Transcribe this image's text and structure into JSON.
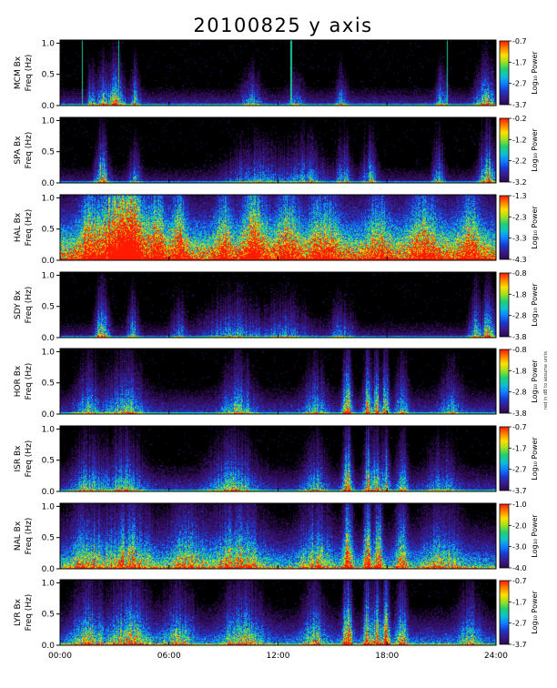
{
  "title": "20100825 y axis",
  "side_note": "red in dB to assume units",
  "colors": {
    "background": "#000000",
    "colormap": [
      "#000000",
      "#2a0a4a",
      "#3a1a8a",
      "#1a3ad0",
      "#1080ff",
      "#10c0d0",
      "#20d070",
      "#a0e020",
      "#ffe000",
      "#ff8000",
      "#ff1a00"
    ]
  },
  "chart_data": {
    "type": "heatmap",
    "title": "20100825 y axis",
    "x_ticks": [
      "00:00",
      "06:00",
      "12:00",
      "18:00",
      "24:00"
    ],
    "xlim_hours": [
      0,
      24
    ],
    "ylim_hz": [
      0,
      1.05
    ],
    "y_ticks": [
      "0.0",
      "0.5",
      "1.0"
    ],
    "panels": [
      {
        "station": "MCM",
        "label": "MCM Bx",
        "ylabel": "Freq (Hz)",
        "cbar_label": "Log₁₀ Power",
        "cbar_ticks": [
          "-0.7",
          "-1.7",
          "-2.7",
          "-3.7"
        ],
        "baseline": 0.15,
        "noise": 0.45,
        "decay": 5.5,
        "level": 0.45,
        "bursts": [
          [
            1.7,
            0.2,
            0.5
          ],
          [
            2.4,
            0.35,
            0.8
          ],
          [
            2.95,
            0.2,
            0.6
          ],
          [
            3.25,
            0.3,
            0.6
          ],
          [
            4.1,
            0.25,
            0.6
          ],
          [
            10.5,
            0.5,
            0.4
          ],
          [
            13.0,
            0.4,
            0.3
          ],
          [
            15.5,
            0.3,
            0.4
          ],
          [
            21.0,
            0.3,
            0.5
          ],
          [
            23.4,
            0.5,
            0.7
          ]
        ],
        "spikes": [
          1.2,
          3.2,
          12.7,
          21.3
        ]
      },
      {
        "station": "SPA",
        "label": "SPA Bx",
        "ylabel": "Freq (Hz)",
        "cbar_label": "Log₁₀ Power",
        "cbar_ticks": [
          "-0.2",
          "-1.2",
          "-2.2",
          "-3.2"
        ],
        "baseline": 0.12,
        "noise": 0.4,
        "decay": 5.0,
        "level": 0.4,
        "bursts": [
          [
            2.3,
            0.35,
            1.0
          ],
          [
            4.1,
            0.3,
            0.5
          ],
          [
            10.8,
            1.5,
            0.5
          ],
          [
            13.5,
            1.0,
            0.5
          ],
          [
            15.6,
            0.4,
            0.6
          ],
          [
            17.0,
            0.4,
            0.6
          ],
          [
            20.8,
            0.3,
            0.6
          ],
          [
            23.5,
            0.45,
            1.0
          ]
        ],
        "spikes": []
      },
      {
        "station": "HAL",
        "label": "HAL Bx",
        "ylabel": "Freq (Hz)",
        "cbar_label": "Log₁₀ Power",
        "cbar_ticks": [
          "-1.3",
          "-2.3",
          "-3.3",
          "-4.3"
        ],
        "baseline": 0.5,
        "noise": 0.55,
        "decay": 2.2,
        "level": 0.55,
        "bursts": [
          [
            1.6,
            0.5,
            0.6
          ],
          [
            2.9,
            0.7,
            0.9
          ],
          [
            3.9,
            0.7,
            1.2
          ],
          [
            5.3,
            0.5,
            0.6
          ],
          [
            6.5,
            0.4,
            0.6
          ],
          [
            9.0,
            0.4,
            0.5
          ],
          [
            10.7,
            0.6,
            0.8
          ],
          [
            12.5,
            0.6,
            0.6
          ],
          [
            14.5,
            0.8,
            0.5
          ],
          [
            17.5,
            0.6,
            0.4
          ],
          [
            20.0,
            0.8,
            0.5
          ],
          [
            22.5,
            0.6,
            0.5
          ]
        ],
        "spikes": []
      },
      {
        "station": "SDY",
        "label": "SDY Bx",
        "ylabel": "Freq (Hz)",
        "cbar_label": "Log₁₀ Power",
        "cbar_ticks": [
          "-0.8",
          "-1.8",
          "-2.8",
          "-3.8"
        ],
        "baseline": 0.12,
        "noise": 0.4,
        "decay": 5.0,
        "level": 0.4,
        "bursts": [
          [
            2.3,
            0.35,
            1.0
          ],
          [
            4.0,
            0.3,
            0.6
          ],
          [
            6.5,
            0.4,
            0.4
          ],
          [
            9.5,
            1.5,
            0.5
          ],
          [
            12.5,
            1.2,
            0.4
          ],
          [
            15.5,
            0.6,
            0.4
          ],
          [
            22.8,
            0.3,
            0.7
          ],
          [
            23.6,
            0.4,
            1.0
          ]
        ],
        "spikes": []
      },
      {
        "station": "HOR",
        "label": "HOR Bx",
        "ylabel": "Freq (Hz)",
        "cbar_label": "Log₁₀ Power",
        "cbar_ticks": [
          "-0.8",
          "-1.8",
          "-2.8",
          "-3.8"
        ],
        "baseline": 0.18,
        "noise": 0.4,
        "decay": 4.0,
        "level": 0.42,
        "bursts": [
          [
            1.5,
            0.6,
            0.5
          ],
          [
            3.5,
            1.0,
            0.6
          ],
          [
            9.8,
            0.8,
            0.6
          ],
          [
            14.0,
            0.6,
            0.5
          ],
          [
            15.8,
            0.25,
            1.1
          ],
          [
            16.9,
            0.2,
            1.0
          ],
          [
            17.4,
            0.2,
            0.9
          ],
          [
            17.9,
            0.2,
            0.9
          ],
          [
            18.8,
            0.3,
            0.6
          ],
          [
            21.5,
            0.6,
            0.4
          ]
        ],
        "spikes": []
      },
      {
        "station": "ISR",
        "label": "ISR Bx",
        "ylabel": "Freq (Hz)",
        "cbar_label": "Log₁₀ Power",
        "cbar_ticks": [
          "-0.7",
          "-1.7",
          "-2.7",
          "-3.7"
        ],
        "baseline": 0.18,
        "noise": 0.4,
        "decay": 4.0,
        "level": 0.42,
        "bursts": [
          [
            1.5,
            0.8,
            0.5
          ],
          [
            3.5,
            1.0,
            0.6
          ],
          [
            9.5,
            1.2,
            0.6
          ],
          [
            14.0,
            0.6,
            0.5
          ],
          [
            15.8,
            0.25,
            1.1
          ],
          [
            16.9,
            0.2,
            1.0
          ],
          [
            17.4,
            0.2,
            0.9
          ],
          [
            17.9,
            0.2,
            0.9
          ],
          [
            18.8,
            0.3,
            0.6
          ],
          [
            21.0,
            0.8,
            0.4
          ]
        ],
        "spikes": []
      },
      {
        "station": "NAL",
        "label": "NAL Bx",
        "ylabel": "Freq (Hz)",
        "cbar_label": "Log₁₀ Power",
        "cbar_ticks": [
          "-1.0",
          "-2.0",
          "-3.0",
          "-4.0"
        ],
        "baseline": 0.3,
        "noise": 0.5,
        "decay": 3.0,
        "level": 0.5,
        "bursts": [
          [
            1.5,
            1.0,
            0.5
          ],
          [
            3.8,
            1.2,
            0.6
          ],
          [
            7.0,
            1.0,
            0.5
          ],
          [
            9.8,
            1.2,
            0.6
          ],
          [
            14.0,
            0.8,
            0.5
          ],
          [
            15.8,
            0.25,
            1.0
          ],
          [
            16.9,
            0.2,
            0.9
          ],
          [
            17.5,
            0.2,
            0.9
          ],
          [
            18.8,
            0.3,
            0.7
          ],
          [
            21.0,
            1.0,
            0.4
          ]
        ],
        "spikes": []
      },
      {
        "station": "LYR",
        "label": "LYR Bx",
        "ylabel": "Freq (Hz)",
        "cbar_label": "Log₁₀ Power",
        "cbar_ticks": [
          "-0.7",
          "-1.7",
          "-2.7",
          "-3.7"
        ],
        "baseline": 0.25,
        "noise": 0.45,
        "decay": 3.5,
        "level": 0.45,
        "bursts": [
          [
            1.5,
            0.8,
            0.6
          ],
          [
            3.8,
            1.0,
            0.7
          ],
          [
            6.5,
            0.8,
            0.5
          ],
          [
            10.0,
            1.0,
            0.6
          ],
          [
            14.0,
            0.6,
            0.5
          ],
          [
            15.8,
            0.25,
            1.1
          ],
          [
            16.9,
            0.2,
            1.0
          ],
          [
            17.4,
            0.2,
            0.9
          ],
          [
            17.9,
            0.2,
            1.0
          ],
          [
            18.8,
            0.3,
            0.6
          ],
          [
            22.5,
            0.6,
            0.4
          ]
        ],
        "spikes": []
      }
    ]
  }
}
